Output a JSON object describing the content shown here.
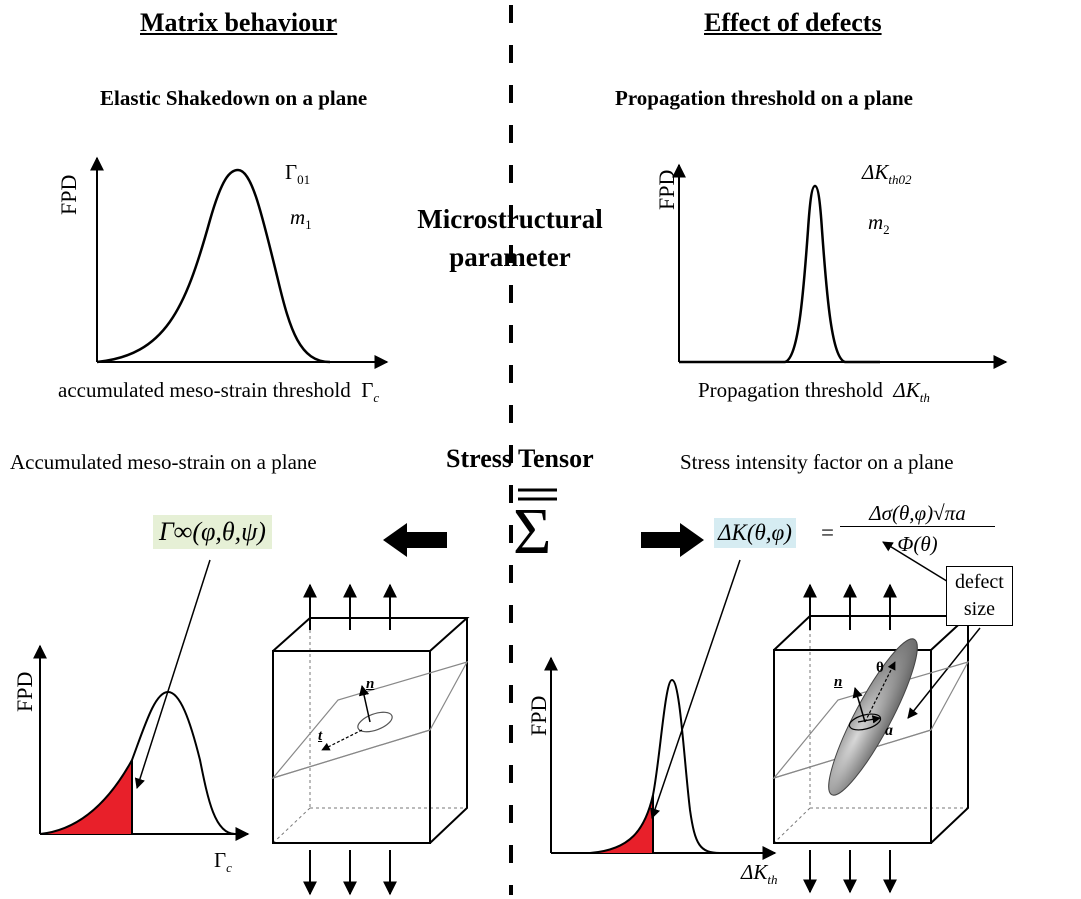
{
  "left": {
    "title": "Matrix behaviour",
    "subtitle": "Elastic Shakedown on a plane",
    "top_chart": {
      "ylabel": "FPD",
      "xlabel": "accumulated meso-strain threshold",
      "xsym": "Γ",
      "xsub": "c",
      "param1_sym": "Γ",
      "param1_sub": "01",
      "param2_sym": "m",
      "param2_sub": "1"
    },
    "plane_label": "Accumulated meso-strain on a plane",
    "formula": "Γ∞(φ,θ,ψ)",
    "bottom_chart": {
      "ylabel": "FPD",
      "xsym": "Γ",
      "xsub": "c"
    },
    "cube": {
      "normal": "n",
      "tangent": "t"
    }
  },
  "center": {
    "micro": "Microstructural parameter",
    "stress": "Stress Tensor",
    "sigma": "Σ"
  },
  "right": {
    "title": "Effect of defects",
    "subtitle": "Propagation threshold on a plane",
    "top_chart": {
      "ylabel": "FPD",
      "xlabel": "Propagation threshold",
      "xsym": "ΔK",
      "xsub": "th",
      "param1_sym": "ΔK",
      "param1_sub": "th02",
      "param2_sym": "m",
      "param2_sub": "2"
    },
    "plane_label": "Stress intensity factor on a plane",
    "formula_lhs": "ΔK(θ,φ)",
    "formula_eq": "=",
    "formula_num": "Δσ(θ,φ)√πa",
    "formula_den": "Φ(θ)",
    "defect_label_1": "defect",
    "defect_label_2": "size",
    "bottom_chart": {
      "ylabel": "FPD",
      "xsym": "ΔK",
      "xsub": "th"
    },
    "cube": {
      "normal": "n",
      "theta": "θ",
      "a": "a"
    }
  }
}
